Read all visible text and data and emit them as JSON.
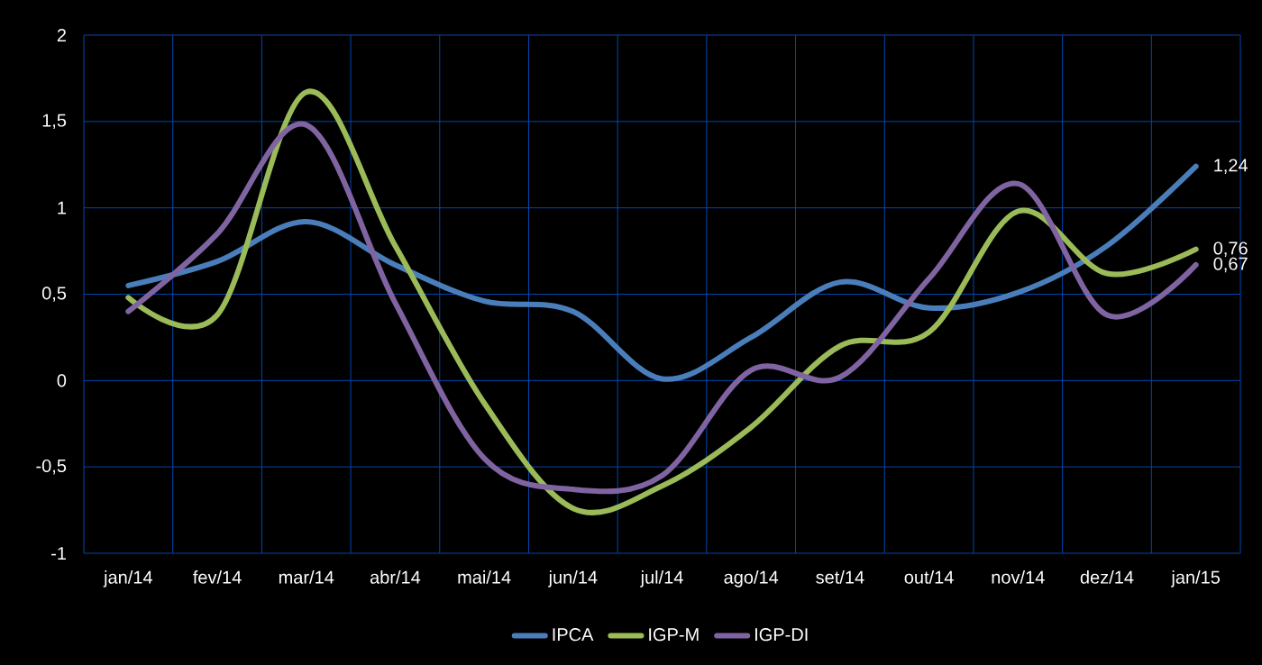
{
  "chart_data": {
    "type": "line",
    "categories": [
      "jan/14",
      "fev/14",
      "mar/14",
      "abr/14",
      "mai/14",
      "jun/14",
      "jul/14",
      "ago/14",
      "set/14",
      "out/14",
      "nov/14",
      "dez/14",
      "jan/15"
    ],
    "series": [
      {
        "name": "IPCA",
        "color": "#4a7ebb",
        "values": [
          0.55,
          0.69,
          0.92,
          0.67,
          0.46,
          0.4,
          0.01,
          0.25,
          0.57,
          0.42,
          0.51,
          0.78,
          1.24
        ],
        "value_labels": [
          null,
          null,
          null,
          null,
          null,
          null,
          null,
          null,
          null,
          null,
          null,
          null,
          "1,24"
        ]
      },
      {
        "name": "IGP-M",
        "color": "#9bbb59",
        "values": [
          0.48,
          0.38,
          1.67,
          0.78,
          -0.13,
          -0.74,
          -0.61,
          -0.27,
          0.2,
          0.28,
          0.98,
          0.62,
          0.76
        ],
        "value_labels": [
          null,
          null,
          null,
          null,
          null,
          null,
          null,
          null,
          null,
          null,
          null,
          null,
          "0,76"
        ]
      },
      {
        "name": "IGP-DI",
        "color": "#8064a2",
        "values": [
          0.4,
          0.85,
          1.48,
          0.45,
          -0.45,
          -0.63,
          -0.55,
          0.06,
          0.02,
          0.59,
          1.14,
          0.38,
          0.67
        ],
        "value_labels": [
          null,
          null,
          null,
          null,
          null,
          null,
          null,
          null,
          null,
          null,
          null,
          null,
          "0,67"
        ]
      }
    ],
    "ylim": [
      -1,
      2
    ],
    "yticks": [
      -1,
      {
        "value": -0.5,
        "label": "-0,5"
      },
      0,
      {
        "value": 0.5,
        "label": "0,5"
      },
      1,
      {
        "value": 1.5,
        "label": "1,5"
      },
      2
    ],
    "grid": true,
    "legend": "bottom",
    "line_style": "solid",
    "marker": "none"
  }
}
